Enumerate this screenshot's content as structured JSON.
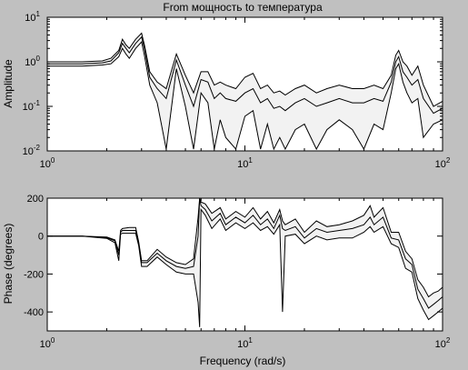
{
  "figure": {
    "background": "#c0c0c0",
    "plot_background": "#ffffff",
    "line_color": "#000000",
    "band_fill": "#f2f2f2"
  },
  "chart_data": [
    {
      "type": "line",
      "title": "From мощность to температура",
      "ylabel": "Amplitude",
      "xlabel": "",
      "xscale": "log",
      "yscale": "log",
      "xlim": [
        1,
        100
      ],
      "ylim": [
        0.01,
        10
      ],
      "x_ticks": [
        1,
        10,
        100
      ],
      "x_tick_labels": [
        {
          "base": "10",
          "exp": "0"
        },
        {
          "base": "10",
          "exp": "1"
        },
        {
          "base": "10",
          "exp": "2"
        }
      ],
      "y_ticks": [
        0.01,
        0.1,
        1,
        10
      ],
      "y_tick_labels": [
        {
          "base": "10",
          "exp": "-2"
        },
        {
          "base": "10",
          "exp": "-1"
        },
        {
          "base": "10",
          "exp": "0"
        },
        {
          "base": "10",
          "exp": "1"
        }
      ],
      "grid": false,
      "x": [
        1,
        1.5,
        1.9,
        2.1,
        2.3,
        2.4,
        2.5,
        2.6,
        2.8,
        3.0,
        3.1,
        3.3,
        3.6,
        4.0,
        4.5,
        5.0,
        5.5,
        6.0,
        6.5,
        7.0,
        7.5,
        8.0,
        9.0,
        10,
        11,
        12,
        13,
        14,
        15,
        16,
        18,
        20,
        23,
        26,
        30,
        35,
        40,
        45,
        50,
        55,
        58,
        60,
        63,
        66,
        70,
        75,
        80,
        90,
        100
      ],
      "series": [
        {
          "values": [
            1.0,
            1.0,
            1.05,
            1.2,
            1.8,
            3.2,
            2.4,
            2.0,
            3.2,
            4.4,
            2.4,
            0.6,
            0.35,
            0.25,
            1.5,
            0.5,
            0.2,
            0.6,
            0.6,
            0.3,
            0.35,
            0.3,
            0.25,
            0.45,
            0.55,
            0.25,
            0.3,
            0.2,
            0.22,
            0.18,
            0.25,
            0.3,
            0.2,
            0.25,
            0.3,
            0.25,
            0.25,
            0.3,
            0.25,
            0.5,
            1.4,
            1.8,
            1.0,
            0.8,
            0.5,
            0.8,
            0.3,
            0.1,
            0.13
          ]
        },
        {
          "values": [
            0.9,
            0.9,
            0.95,
            1.05,
            1.6,
            2.6,
            2.0,
            1.6,
            2.6,
            3.6,
            2.0,
            0.45,
            0.25,
            0.15,
            1.1,
            0.3,
            0.1,
            0.4,
            0.35,
            0.15,
            0.2,
            0.15,
            0.13,
            0.2,
            0.25,
            0.12,
            0.15,
            0.09,
            0.1,
            0.08,
            0.12,
            0.15,
            0.1,
            0.12,
            0.15,
            0.12,
            0.12,
            0.15,
            0.13,
            0.35,
            1.0,
            1.3,
            0.6,
            0.45,
            0.3,
            0.4,
            0.15,
            0.07,
            0.09
          ]
        },
        {
          "values": [
            0.8,
            0.8,
            0.85,
            0.9,
            1.3,
            2.0,
            1.5,
            1.2,
            2.0,
            2.8,
            1.4,
            0.3,
            0.12,
            0.011,
            0.7,
            0.1,
            0.011,
            0.2,
            0.12,
            0.011,
            0.05,
            0.02,
            0.011,
            0.06,
            0.08,
            0.011,
            0.04,
            0.011,
            0.02,
            0.011,
            0.03,
            0.04,
            0.011,
            0.03,
            0.05,
            0.03,
            0.011,
            0.04,
            0.03,
            0.2,
            0.7,
            0.9,
            0.35,
            0.2,
            0.12,
            0.15,
            0.02,
            0.04,
            0.05
          ]
        }
      ]
    },
    {
      "type": "line",
      "title": "",
      "ylabel": "Phase (degrees)",
      "xlabel": "Frequency (rad/s)",
      "xscale": "log",
      "yscale": "linear",
      "xlim": [
        1,
        100
      ],
      "ylim": [
        -500,
        200
      ],
      "x_ticks": [
        1,
        10,
        100
      ],
      "x_tick_labels": [
        {
          "base": "10",
          "exp": "0"
        },
        {
          "base": "10",
          "exp": "1"
        },
        {
          "base": "10",
          "exp": "2"
        }
      ],
      "y_ticks": [
        200,
        0,
        -200,
        -400
      ],
      "y_tick_labels": [
        "200",
        "0",
        "-200",
        "-400"
      ],
      "grid": false,
      "x": [
        1,
        1.5,
        2.0,
        2.2,
        2.3,
        2.35,
        2.4,
        2.6,
        2.8,
        2.9,
        3.0,
        3.2,
        3.6,
        4.0,
        4.5,
        5.0,
        5.5,
        5.8,
        5.9,
        6.0,
        6.3,
        6.8,
        7.5,
        8.0,
        9.0,
        10,
        11,
        12,
        13,
        14,
        15,
        15.5,
        16,
        18,
        20,
        23,
        26,
        30,
        35,
        40,
        43,
        45,
        50,
        55,
        60,
        65,
        70,
        75,
        80,
        85,
        90,
        95,
        100
      ],
      "series": [
        {
          "values": [
            0,
            0,
            -5,
            -20,
            -80,
            30,
            40,
            45,
            45,
            -30,
            -130,
            -130,
            -70,
            -110,
            -140,
            -150,
            -120,
            100,
            230,
            180,
            170,
            120,
            150,
            90,
            130,
            100,
            150,
            90,
            130,
            70,
            140,
            80,
            60,
            90,
            20,
            80,
            50,
            60,
            80,
            110,
            160,
            100,
            150,
            20,
            20,
            -80,
            -120,
            -230,
            -270,
            -320,
            -300,
            -290,
            -270
          ]
        },
        {
          "values": [
            0,
            0,
            -8,
            -25,
            -100,
            20,
            30,
            30,
            30,
            -40,
            -140,
            -140,
            -90,
            -130,
            -160,
            -170,
            -160,
            0,
            200,
            160,
            140,
            80,
            120,
            60,
            100,
            70,
            110,
            60,
            90,
            40,
            110,
            40,
            30,
            50,
            -10,
            40,
            20,
            30,
            40,
            60,
            100,
            60,
            100,
            -10,
            -20,
            -120,
            -150,
            -280,
            -330,
            -380,
            -360,
            -340,
            -320
          ]
        },
        {
          "values": [
            0,
            0,
            -12,
            -35,
            -130,
            10,
            15,
            15,
            15,
            -50,
            -160,
            -160,
            -110,
            -150,
            -190,
            -200,
            -200,
            -350,
            -480,
            140,
            110,
            40,
            90,
            30,
            70,
            40,
            70,
            30,
            50,
            10,
            60,
            -400,
            0,
            10,
            -40,
            0,
            -20,
            -10,
            -10,
            20,
            50,
            20,
            50,
            -40,
            -60,
            -170,
            -190,
            -330,
            -390,
            -440,
            -420,
            -400,
            -380
          ]
        }
      ]
    }
  ]
}
